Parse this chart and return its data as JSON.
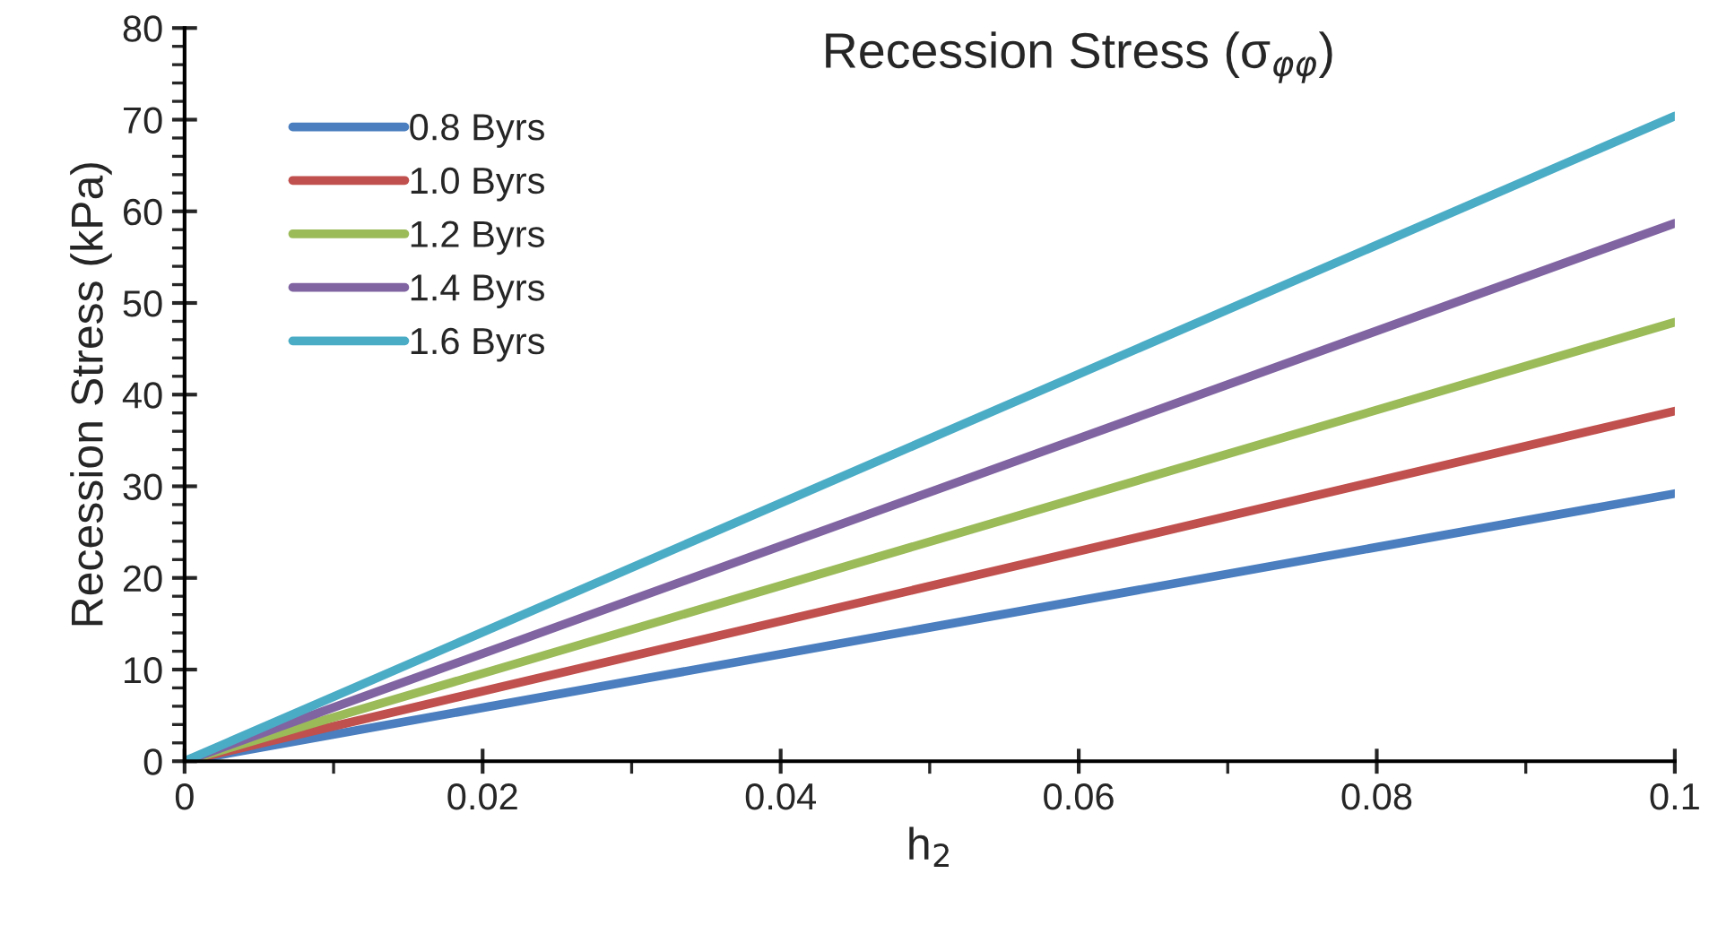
{
  "chart_data": {
    "type": "line",
    "title": "Recession Stress (σ$_{φφ}$)",
    "xlabel": "h$_{2}$",
    "ylabel": "Recession Stress (kPa)",
    "x": [
      0,
      0.1
    ],
    "series": [
      {
        "name": "0.8 Byrs",
        "color": "#4a7ebf",
        "values": [
          0,
          29.2
        ]
      },
      {
        "name": "1.0 Byrs",
        "color": "#c0504d",
        "values": [
          0,
          38.2
        ]
      },
      {
        "name": "1.2 Byrs",
        "color": "#9bbb59",
        "values": [
          0,
          47.9
        ]
      },
      {
        "name": "1.4 Byrs",
        "color": "#8064a2",
        "values": [
          0,
          58.7
        ]
      },
      {
        "name": "1.6 Byrs",
        "color": "#4bacc6",
        "values": [
          0,
          70.4
        ]
      }
    ],
    "xlim": [
      0,
      0.1
    ],
    "xticks": [
      0,
      0.02,
      0.04,
      0.06,
      0.08,
      0.1
    ],
    "ylim": [
      0,
      80
    ],
    "yticks": [
      0,
      10,
      20,
      30,
      40,
      50,
      60,
      70,
      80
    ],
    "grid": false,
    "legend": "top left",
    "marker": "none",
    "line_style": "solid"
  }
}
